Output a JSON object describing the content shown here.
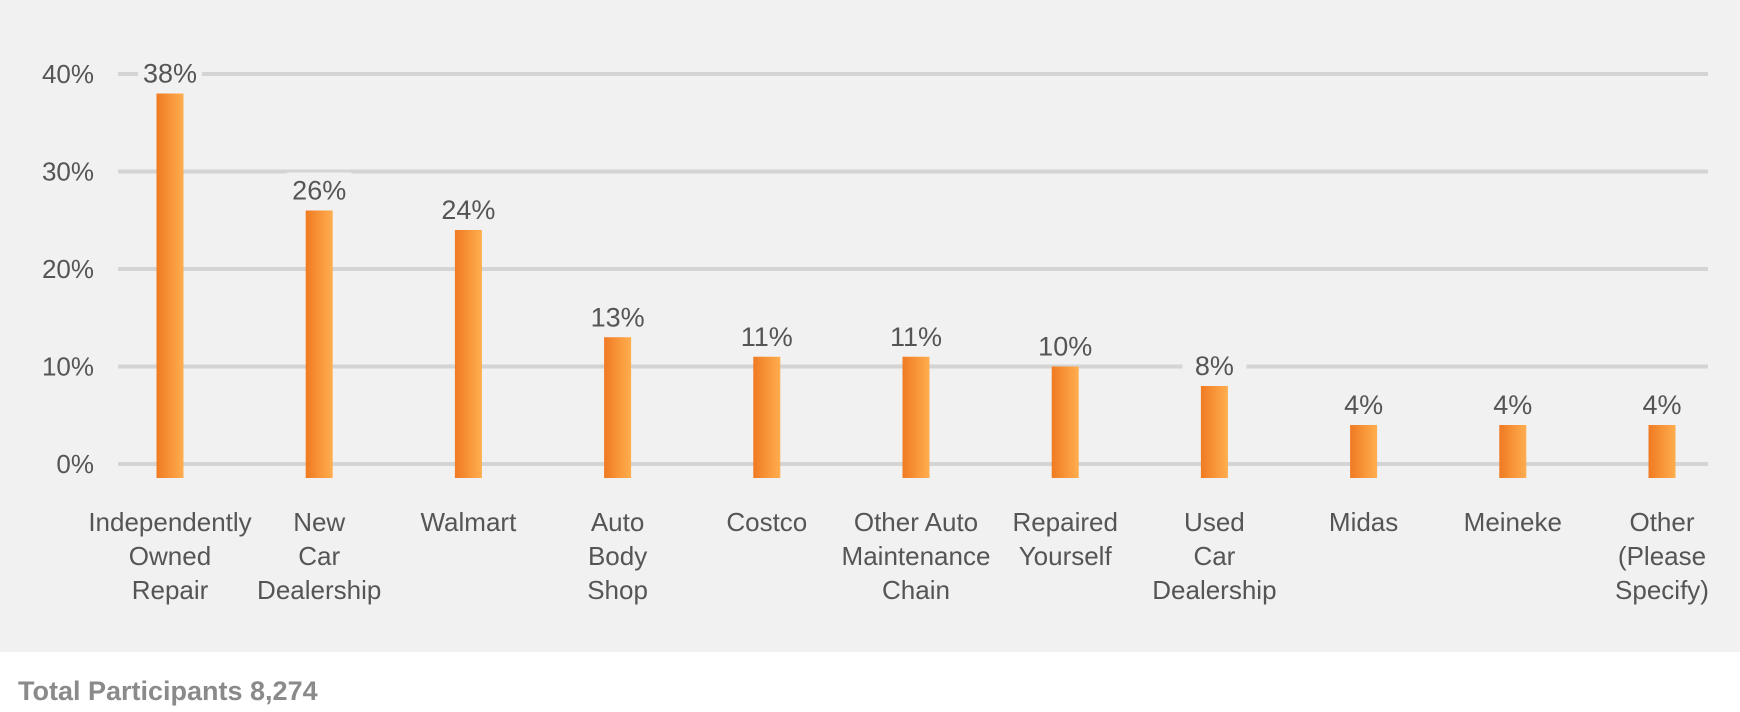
{
  "chart_data": {
    "type": "bar",
    "categories": [
      [
        "Independently",
        "Owned",
        "Repair"
      ],
      [
        "New",
        "Car",
        "Dealership"
      ],
      [
        "Walmart"
      ],
      [
        "Auto",
        "Body",
        "Shop"
      ],
      [
        "Costco"
      ],
      [
        "Other Auto",
        "Maintenance",
        "Chain"
      ],
      [
        "Repaired",
        "Yourself"
      ],
      [
        "Used",
        "Car",
        "Dealership"
      ],
      [
        "Midas"
      ],
      [
        "Meineke"
      ],
      [
        "Other",
        "(Please",
        "Specify)"
      ]
    ],
    "values": [
      38,
      26,
      24,
      13,
      11,
      11,
      10,
      8,
      4,
      4,
      4
    ],
    "data_labels": [
      "38%",
      "26%",
      "24%",
      "13%",
      "11%",
      "11%",
      "10%",
      "8%",
      "4%",
      "4%",
      "4%"
    ],
    "y_ticks": [
      0,
      10,
      20,
      30,
      40
    ],
    "y_tick_labels": [
      "0%",
      "10%",
      "20%",
      "30%",
      "40%"
    ],
    "ylim": [
      0,
      40
    ],
    "grid": true,
    "legend": "none",
    "colors": {
      "bar_dark": "#f07a22",
      "bar_light": "#ffae4f",
      "grid": "#d4d4d4",
      "text": "#555555",
      "panel": "#f1f1f1"
    }
  },
  "footer": {
    "note": "Total Participants 8,274"
  }
}
